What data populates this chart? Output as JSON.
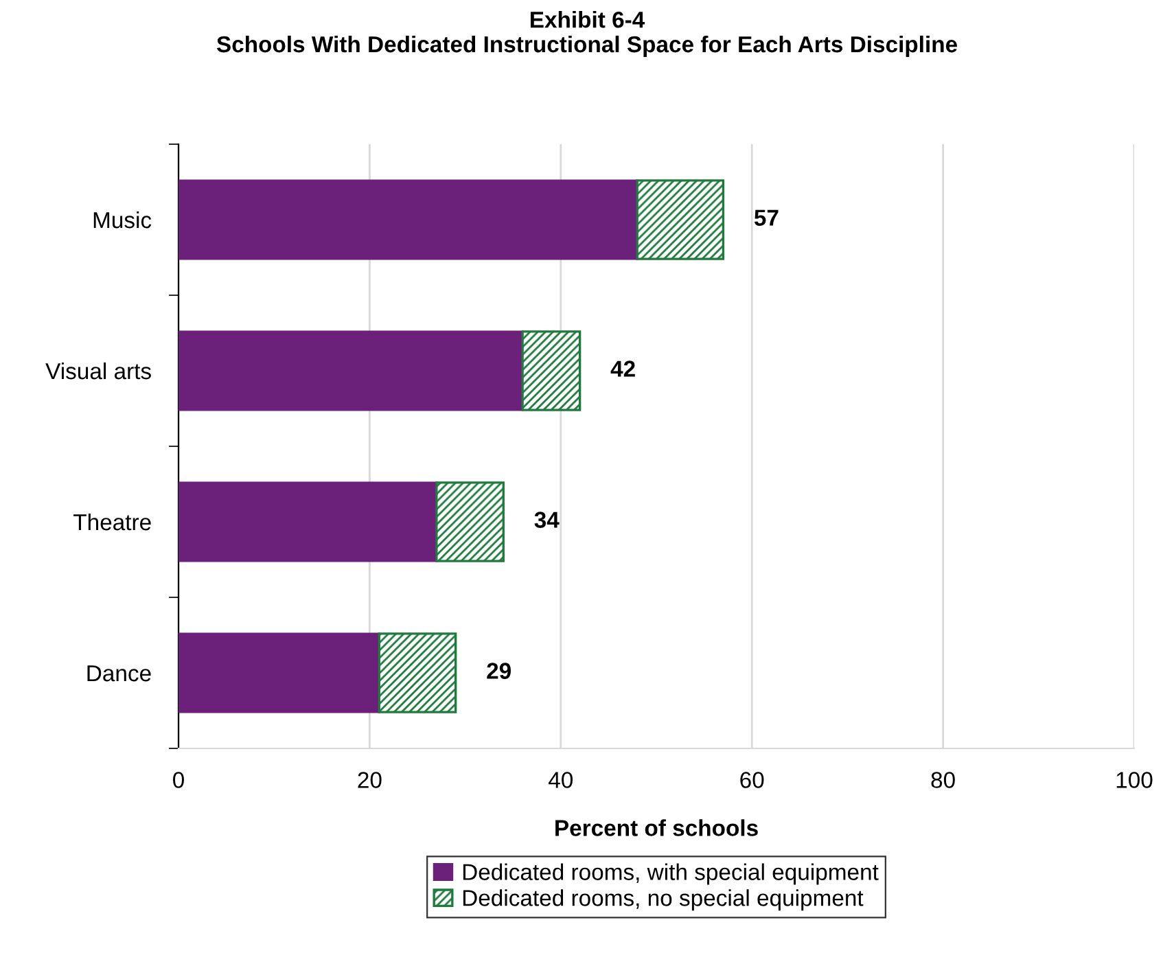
{
  "chart_data": {
    "type": "bar",
    "orientation": "horizontal",
    "stacked": true,
    "title": "Exhibit 6-4\nSchools With Dedicated Instructional Space for Each Arts Discipline",
    "xlabel": "Percent of schools",
    "categories": [
      "Music",
      "Visual arts",
      "Theatre",
      "Dance"
    ],
    "series": [
      {
        "name": "Dedicated rooms, with special equipment",
        "color": "#6b2079",
        "values": [
          48,
          36,
          27,
          21
        ]
      },
      {
        "name": "Dedicated rooms, no special equipment",
        "color": "#1e7b3c",
        "values": [
          9,
          6,
          7,
          8
        ]
      }
    ],
    "totals": [
      "57",
      "42",
      "34",
      "29"
    ],
    "xlim": [
      0,
      100
    ],
    "xticks": [
      0,
      20,
      40,
      60,
      80,
      100
    ],
    "grid": "x",
    "legend": "bottom"
  }
}
